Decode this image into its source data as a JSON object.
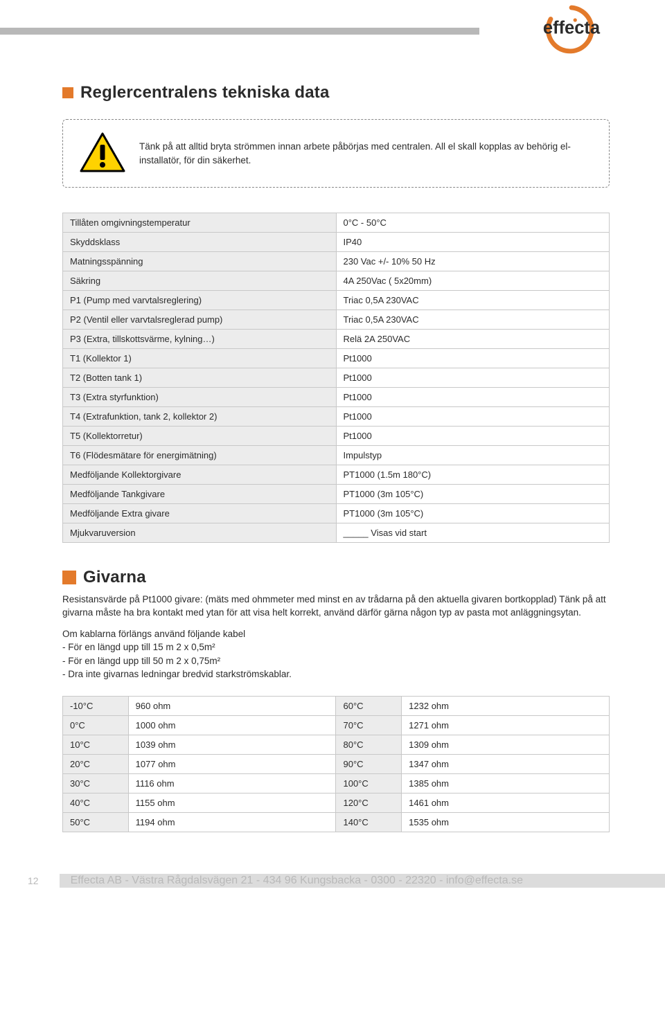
{
  "logo": {
    "text": "effecta"
  },
  "heading1": "Reglercentralens tekniska data",
  "warning_text": "Tänk på att alltid bryta strömmen innan arbete påbörjas med centralen. All el skall kopplas av behörig el-installatör, för din säkerhet.",
  "spec_table": {
    "rows": [
      [
        "Tillåten omgivningstemperatur",
        "0°C - 50°C"
      ],
      [
        "Skyddsklass",
        "IP40"
      ],
      [
        "Matningsspänning",
        "230 Vac +/- 10% 50 Hz"
      ],
      [
        "Säkring",
        "4A 250Vac ( 5x20mm)"
      ],
      [
        "P1 (Pump med varvtalsreglering)",
        "Triac 0,5A 230VAC"
      ],
      [
        "P2 (Ventil eller varvtalsreglerad pump)",
        "Triac 0,5A 230VAC"
      ],
      [
        "P3 (Extra, tillskottsvärme, kylning…)",
        "Relä 2A 250VAC"
      ],
      [
        "T1 (Kollektor 1)",
        "Pt1000"
      ],
      [
        "T2 (Botten tank 1)",
        "Pt1000"
      ],
      [
        "T3 (Extra styrfunktion)",
        "Pt1000"
      ],
      [
        "T4 (Extrafunktion, tank 2, kollektor 2)",
        "Pt1000"
      ],
      [
        "T5 (Kollektorretur)",
        "Pt1000"
      ],
      [
        "T6 (Flödesmätare för energimätning)",
        "Impulstyp"
      ],
      [
        "Medföljande Kollektorgivare",
        "PT1000 (1.5m 180°C)"
      ],
      [
        "Medföljande Tankgivare",
        "PT1000 (3m 105°C)"
      ],
      [
        "Medföljande Extra givare",
        "PT1000 (3m 105°C)"
      ],
      [
        "Mjukvaruversion",
        "_____ Visas vid start"
      ]
    ]
  },
  "heading2": "Givarna",
  "paragraph1": "Resistansvärde på Pt1000 givare: (mäts med ohmmeter med minst en av trådarna på den aktuella givaren bortkopplad) Tänk på att givarna måste ha bra kontakt med ytan för att visa helt korrekt, använd därför gärna någon typ av pasta mot anläggningsytan.",
  "paragraph2_lead": "Om kablarna förlängs använd följande kabel",
  "cable_list": [
    "- För en längd upp till 15 m 2 x 0,5m²",
    "- För en längd upp till 50 m 2 x 0,75m²",
    "- Dra inte givarnas ledningar bredvid starkströmskablar."
  ],
  "ohm_table": {
    "rows": [
      [
        "-10°C",
        "960 ohm",
        "60°C",
        "1232 ohm"
      ],
      [
        "0°C",
        "1000 ohm",
        "70°C",
        "1271 ohm"
      ],
      [
        "10°C",
        "1039 ohm",
        "80°C",
        "1309 ohm"
      ],
      [
        "20°C",
        "1077 ohm",
        "90°C",
        "1347 ohm"
      ],
      [
        "30°C",
        "1116 ohm",
        "100°C",
        "1385 ohm"
      ],
      [
        "40°C",
        "1155 ohm",
        "120°C",
        "1461 ohm"
      ],
      [
        "50°C",
        "1194 ohm",
        "140°C",
        "1535 ohm"
      ]
    ]
  },
  "footer": {
    "page": "12",
    "text": "Effecta AB - Västra Rågdalsvägen 21 - 434 96 Kungsbacka - 0300 - 22320 - info@effecta.se"
  },
  "colors": {
    "accent": "#e37a2b",
    "grey_bar": "#b8b8b8",
    "row_bg": "#ececec",
    "border": "#c8c8c8"
  }
}
